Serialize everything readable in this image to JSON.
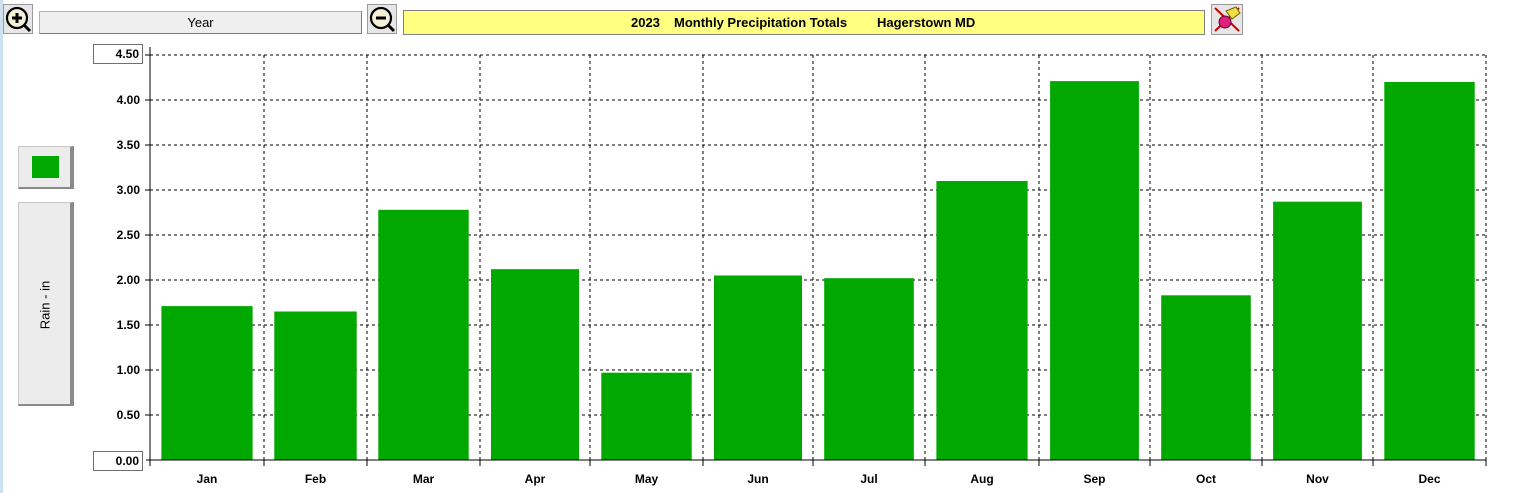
{
  "toolbar": {
    "zoom_in_icon": "zoom-in-icon",
    "zoom_out_icon": "zoom-out-icon",
    "mode": "Year",
    "title_year": "2023",
    "title_main": "Monthly Precipitation Totals",
    "title_location": "Hagerstown MD",
    "clear_icon": "eraser-icon"
  },
  "legend": {
    "series_label": "Rain - in",
    "series_color": "#00a800"
  },
  "y_axis_boxes": {
    "max": "4.50",
    "min": "0.00"
  },
  "chart_data": {
    "type": "bar",
    "title": "2023  Monthly Precipitation Totals      Hagerstown MD",
    "categories": [
      "Jan",
      "Feb",
      "Mar",
      "Apr",
      "May",
      "Jun",
      "Jul",
      "Aug",
      "Sep",
      "Oct",
      "Nov",
      "Dec"
    ],
    "series": [
      {
        "name": "Rain - in",
        "color": "#00a800",
        "values": [
          1.71,
          1.65,
          2.78,
          2.12,
          0.97,
          2.05,
          2.02,
          3.1,
          4.21,
          1.83,
          2.87,
          4.2
        ]
      }
    ],
    "ylabel": "Rain - in",
    "ylim": [
      0,
      4.5
    ],
    "yticks": [
      "0.50",
      "1.00",
      "1.50",
      "2.00",
      "2.50",
      "3.00",
      "3.50",
      "4.00"
    ],
    "ytick_values": [
      0.5,
      1.0,
      1.5,
      2.0,
      2.5,
      3.0,
      3.5,
      4.0
    ],
    "grid": true,
    "grid_style": "dashed"
  }
}
